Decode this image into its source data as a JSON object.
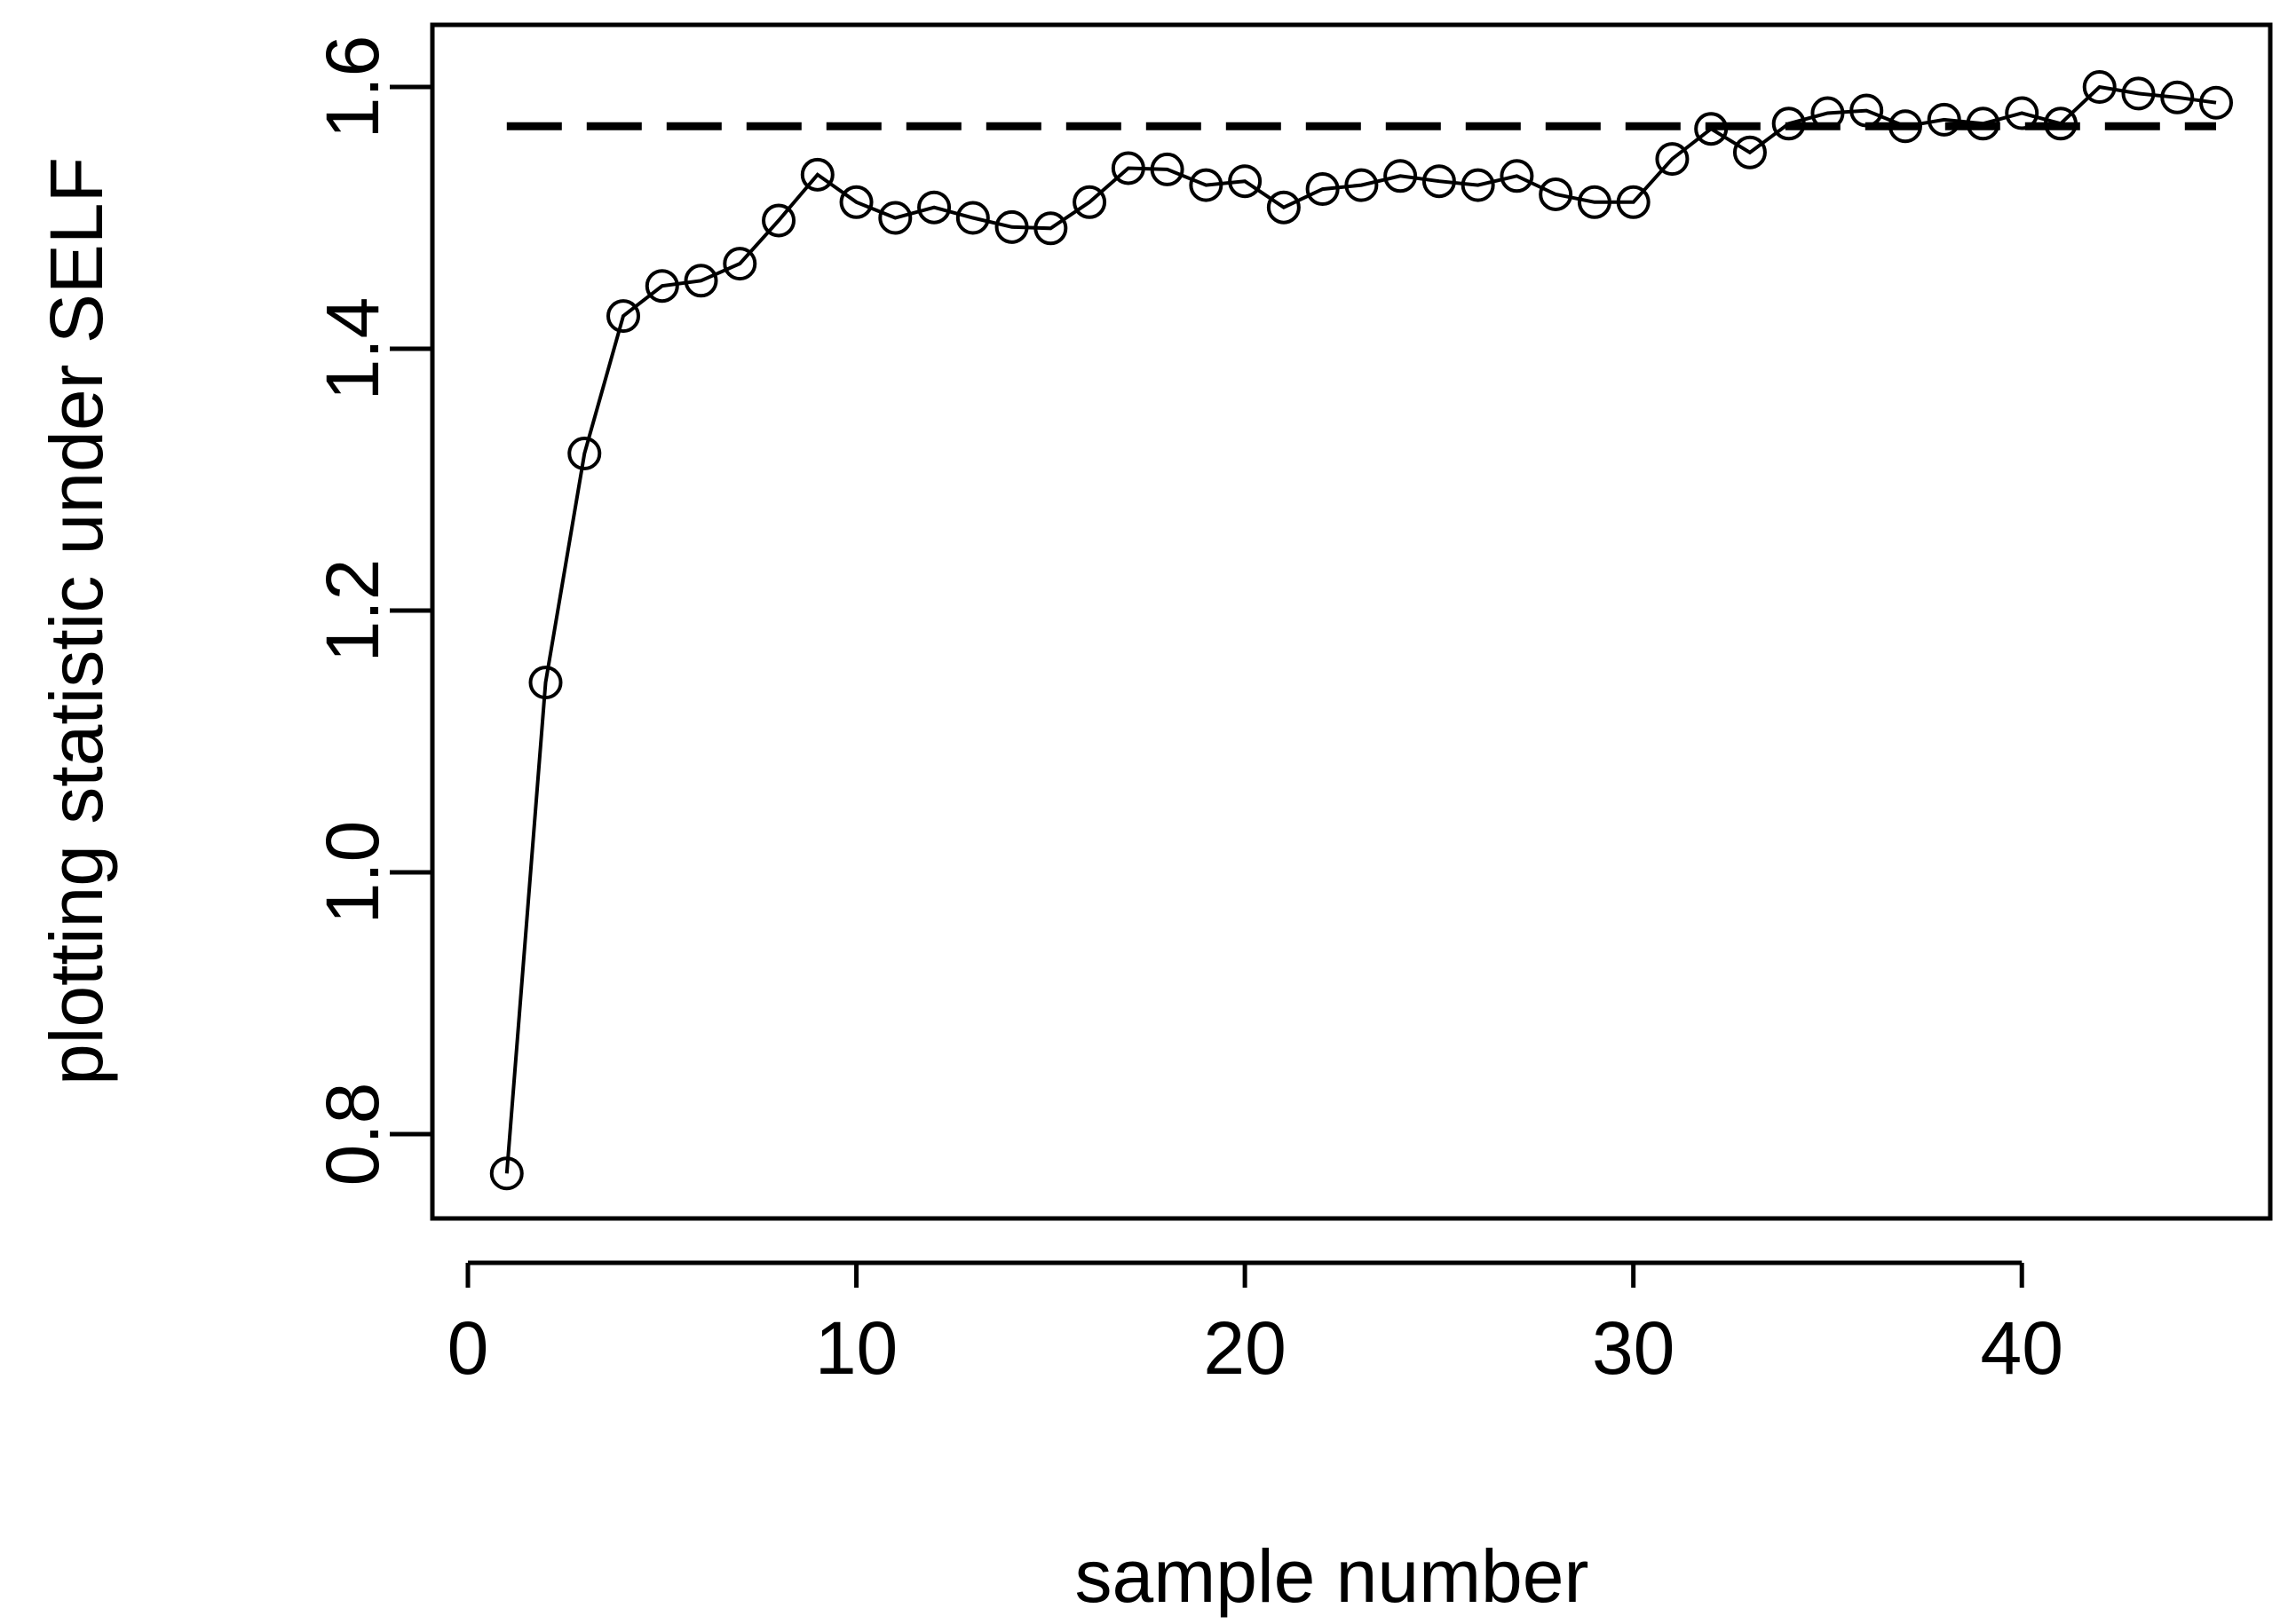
{
  "chart_data": {
    "type": "line",
    "title": "",
    "xlabel": "sample number",
    "ylabel": "plotting statistic under SELF",
    "xlim": [
      0,
      45
    ],
    "ylim": [
      0.75,
      1.63
    ],
    "x_ticks": [
      0,
      10,
      20,
      30,
      40
    ],
    "y_ticks": [
      0.8,
      1.0,
      1.2,
      1.4,
      1.6
    ],
    "x_tick_labels": [
      "0",
      "10",
      "20",
      "30",
      "40"
    ],
    "y_tick_labels": [
      "0.8",
      "1.0",
      "1.2",
      "1.4",
      "1.6"
    ],
    "grid": false,
    "series": [
      {
        "style": "line-with-open-circles",
        "color": "#000000",
        "x": [
          1,
          2,
          3,
          4,
          5,
          6,
          7,
          8,
          9,
          10,
          11,
          12,
          13,
          14,
          15,
          16,
          17,
          18,
          19,
          20,
          21,
          22,
          23,
          24,
          25,
          26,
          27,
          28,
          29,
          30,
          31,
          32,
          33,
          34,
          35,
          36,
          37,
          38,
          39,
          40,
          41,
          42,
          43,
          44,
          45
        ],
        "y": [
          0.77,
          1.145,
          1.32,
          1.425,
          1.448,
          1.452,
          1.465,
          1.498,
          1.533,
          1.512,
          1.5,
          1.508,
          1.5,
          1.493,
          1.492,
          1.512,
          1.538,
          1.537,
          1.525,
          1.528,
          1.508,
          1.522,
          1.525,
          1.532,
          1.528,
          1.525,
          1.532,
          1.518,
          1.512,
          1.512,
          1.545,
          1.568,
          1.55,
          1.572,
          1.58,
          1.582,
          1.57,
          1.575,
          1.572,
          1.58,
          1.572,
          1.6,
          1.595,
          1.592,
          1.588
        ]
      },
      {
        "style": "dashed-line",
        "color": "#000000",
        "x": [
          1,
          45
        ],
        "y": [
          1.57,
          1.57
        ]
      }
    ]
  }
}
